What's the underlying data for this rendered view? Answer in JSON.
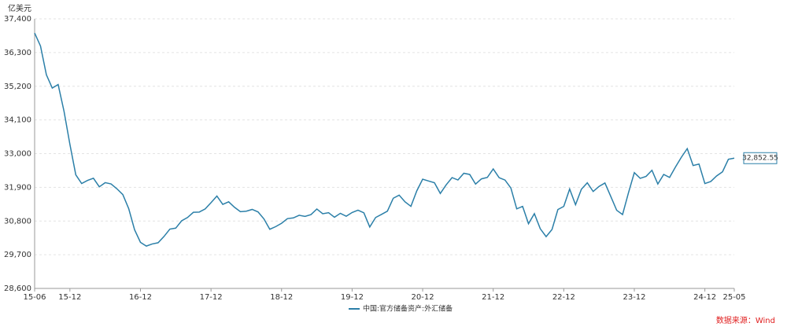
{
  "chart_data": {
    "type": "line",
    "y_unit": "亿美元",
    "source": "数据来源：Wind",
    "categories": [
      "15-06",
      null,
      null,
      null,
      null,
      null,
      "15-12",
      null,
      null,
      null,
      null,
      null,
      null,
      null,
      null,
      null,
      null,
      null,
      "16-12",
      null,
      null,
      null,
      null,
      null,
      null,
      null,
      null,
      null,
      null,
      null,
      "17-12",
      null,
      null,
      null,
      null,
      null,
      null,
      null,
      null,
      null,
      null,
      null,
      "18-12",
      null,
      null,
      null,
      null,
      null,
      null,
      null,
      null,
      null,
      null,
      null,
      "19-12",
      null,
      null,
      null,
      null,
      null,
      null,
      null,
      null,
      null,
      null,
      null,
      "20-12",
      null,
      null,
      null,
      null,
      null,
      null,
      null,
      null,
      null,
      null,
      null,
      "21-12",
      null,
      null,
      null,
      null,
      null,
      null,
      null,
      null,
      null,
      null,
      null,
      "22-12",
      null,
      null,
      null,
      null,
      null,
      null,
      null,
      null,
      null,
      null,
      null,
      "23-12",
      null,
      null,
      null,
      null,
      null,
      null,
      null,
      null,
      null,
      null,
      null,
      "24-12",
      null,
      null,
      null,
      null,
      "25-05"
    ],
    "series": [
      {
        "name": "中国:官方储备资产:外汇储备",
        "color": "#2b7fa8",
        "values": [
          36938,
          36513,
          35574,
          35141,
          35255,
          34383,
          33304,
          32309,
          32023,
          32126,
          32197,
          31917,
          32052,
          32011,
          31852,
          31664,
          31206,
          30516,
          30105,
          29982,
          30051,
          30091,
          30295,
          30536,
          30568,
          30807,
          30915,
          31085,
          31093,
          31193,
          31399,
          31615,
          31345,
          31428,
          31248,
          31106,
          31121,
          31179,
          31097,
          30870,
          30531,
          30617,
          30727,
          30879,
          30902,
          30988,
          30950,
          31010,
          31192,
          31037,
          31072,
          30924,
          31052,
          30956,
          31079,
          31155,
          31067,
          30606,
          30915,
          31017,
          31123,
          31544,
          31646,
          31426,
          31280,
          31785,
          32165,
          32107,
          32050,
          31700,
          31982,
          32218,
          32140,
          32359,
          32321,
          32006,
          32176,
          32224,
          32502,
          32216,
          32138,
          31880,
          31197,
          31278,
          30713,
          31041,
          30549,
          30290,
          30524,
          31175,
          31277,
          31845,
          31332,
          31839,
          32048,
          31765,
          31930,
          32043,
          31601,
          31151,
          31012,
          31718,
          32380,
          32193,
          32258,
          32457,
          32008,
          32320,
          32224,
          32564,
          32882,
          33164,
          32611,
          32659,
          32024,
          32090,
          32272,
          32407,
          32817,
          32852.55
        ],
        "value_labels": [
          null,
          null,
          null,
          null,
          null,
          null,
          null,
          null,
          null,
          null,
          null,
          null,
          null,
          null,
          null,
          null,
          null,
          null,
          null,
          null,
          null,
          null,
          null,
          null,
          null,
          null,
          null,
          null,
          null,
          null,
          null,
          null,
          null,
          null,
          null,
          null,
          null,
          null,
          null,
          null,
          null,
          null,
          null,
          null,
          null,
          null,
          null,
          null,
          null,
          null,
          null,
          null,
          null,
          null,
          null,
          null,
          null,
          null,
          null,
          null,
          null,
          null,
          null,
          null,
          null,
          null,
          null,
          null,
          null,
          null,
          null,
          null,
          null,
          null,
          null,
          null,
          null,
          null,
          null,
          null,
          null,
          null,
          null,
          null,
          null,
          null,
          null,
          null,
          null,
          null,
          null,
          null,
          null,
          null,
          null,
          null,
          null,
          null,
          null,
          null,
          null,
          null,
          null,
          null,
          null,
          null,
          null,
          null,
          null,
          null,
          null,
          null,
          null,
          null,
          null,
          null,
          null,
          null,
          null,
          "32,852.55"
        ]
      }
    ],
    "ylim": [
      28600,
      37400
    ],
    "yticks": [
      {
        "value": 28600,
        "label": "28,600"
      },
      {
        "value": 29700,
        "label": "29,700"
      },
      {
        "value": 30800,
        "label": "30,800"
      },
      {
        "value": 31900,
        "label": "31,900"
      },
      {
        "value": 33000,
        "label": "33,000"
      },
      {
        "value": 34100,
        "label": "34,100"
      },
      {
        "value": 35200,
        "label": "35,200"
      },
      {
        "value": 36300,
        "label": "36,300"
      },
      {
        "value": 37400,
        "label": "37,400"
      }
    ],
    "grid": true
  }
}
